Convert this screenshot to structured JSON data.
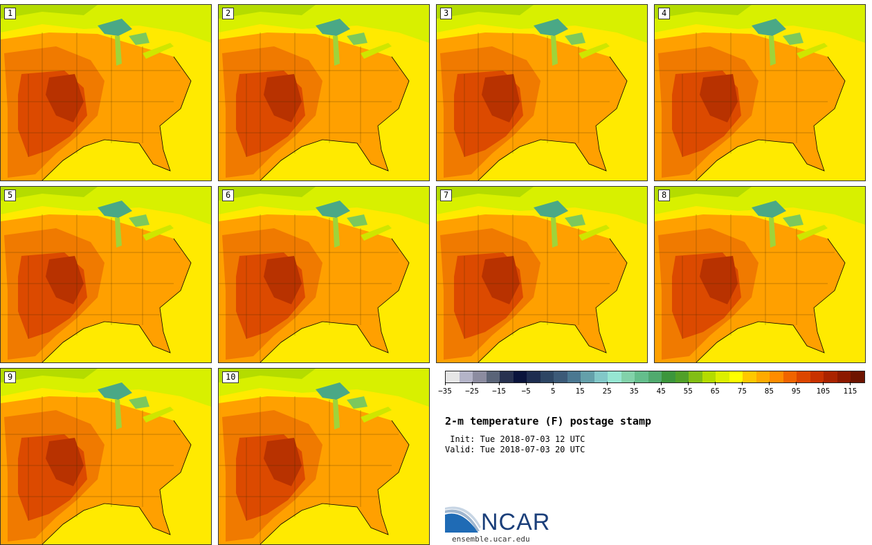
{
  "panels": [
    {
      "label": "1"
    },
    {
      "label": "2"
    },
    {
      "label": "3"
    },
    {
      "label": "4"
    },
    {
      "label": "5"
    },
    {
      "label": "6"
    },
    {
      "label": "7"
    },
    {
      "label": "8"
    },
    {
      "label": "9"
    },
    {
      "label": "10"
    }
  ],
  "colorbar": {
    "colors": [
      "#e6e6e6",
      "#b4b4c8",
      "#8c8ca0",
      "#5a6478",
      "#283250",
      "#0a143c",
      "#1e2d50",
      "#2d4664",
      "#3c5a78",
      "#4b7891",
      "#64a0aa",
      "#82c8c8",
      "#96e6d2",
      "#82d2aa",
      "#64be8c",
      "#50aa6e",
      "#3c963c",
      "#50a028",
      "#82be14",
      "#b4dc00",
      "#dcf000",
      "#ffff00",
      "#ffc800",
      "#ffaa00",
      "#ff8c00",
      "#f06400",
      "#dc4600",
      "#c83200",
      "#aa2300",
      "#8c1900",
      "#6e1400"
    ],
    "tick_labels": [
      "−35",
      "−25",
      "−15",
      "−5",
      "5",
      "15",
      "25",
      "35",
      "45",
      "55",
      "65",
      "75",
      "85",
      "95",
      "105",
      "115"
    ],
    "range": [
      -35,
      120
    ]
  },
  "title": "2-m temperature (F) postage stamp",
  "init_text": " Init: Tue 2018-07-03 12 UTC",
  "valid_text": "Valid: Tue 2018-07-03 20 UTC",
  "logo": {
    "name": "NCAR",
    "url": "ensemble.ucar.edu"
  }
}
